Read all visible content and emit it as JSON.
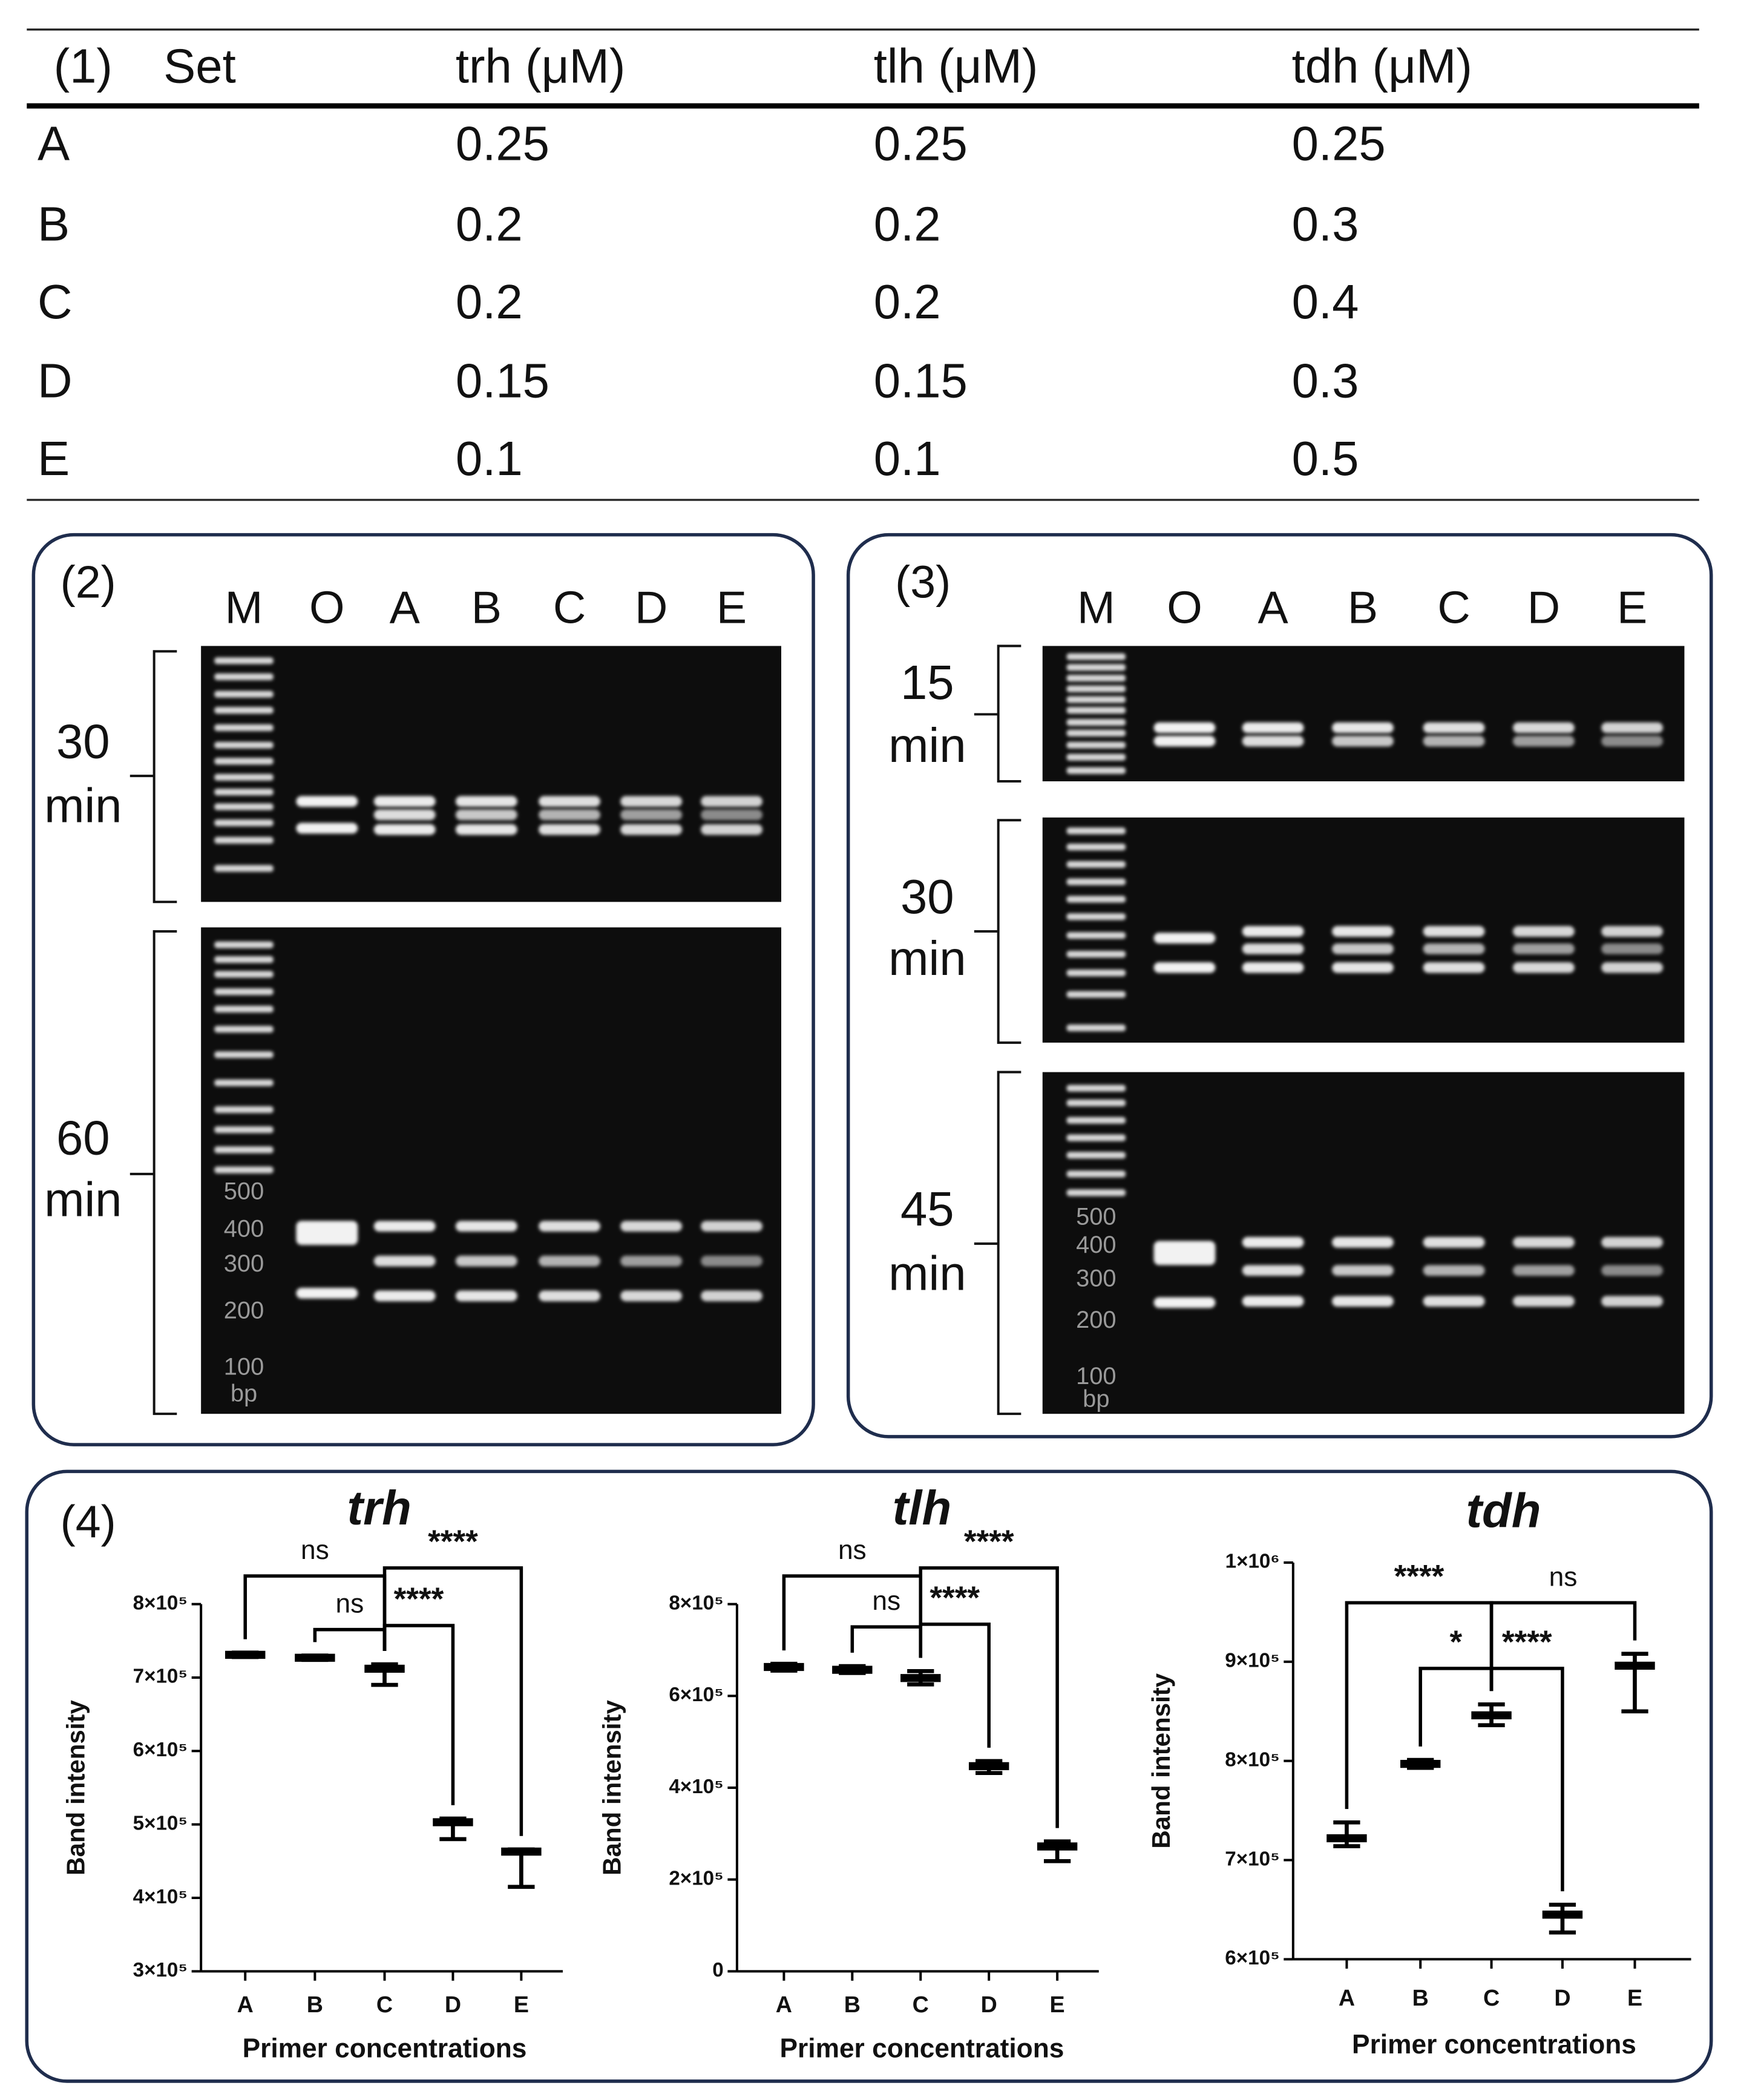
{
  "table": {
    "label": "(1)",
    "header": [
      "Set",
      "trh (μM)",
      "tlh (μM)",
      "tdh (μM)"
    ],
    "rows": [
      [
        "A",
        "0.25",
        "0.25",
        "0.25"
      ],
      [
        "B",
        "0.2",
        "0.2",
        "0.3"
      ],
      [
        "C",
        "0.2",
        "0.2",
        "0.4"
      ],
      [
        "D",
        "0.15",
        "0.15",
        "0.3"
      ],
      [
        "E",
        "0.1",
        "0.1",
        "0.5"
      ]
    ]
  },
  "gels": [
    {
      "label": "(2)",
      "lanes": [
        "M",
        "O",
        "A",
        "B",
        "C",
        "D",
        "E"
      ],
      "sections": [
        {
          "time": "30",
          "unit": "min"
        },
        {
          "time": "60",
          "unit": "min"
        }
      ],
      "ladder": [
        "500",
        "400",
        "300",
        "200",
        "100",
        "bp"
      ]
    },
    {
      "label": "(3)",
      "lanes": [
        "M",
        "O",
        "A",
        "B",
        "C",
        "D",
        "E"
      ],
      "sections": [
        {
          "time": "15",
          "unit": "min"
        },
        {
          "time": "30",
          "unit": "min"
        },
        {
          "time": "45",
          "unit": "min"
        }
      ],
      "ladder": [
        "500",
        "400",
        "300",
        "200",
        "100",
        "bp"
      ]
    }
  ],
  "panel4_label": "(4)",
  "chart_data": [
    {
      "type": "box",
      "title": "trh",
      "ylabel": "Band intensity",
      "xlabel": "Primer concentrations",
      "categories": [
        "A",
        "B",
        "C",
        "D",
        "E"
      ],
      "values": [
        731000,
        727000,
        712000,
        503000,
        463000
      ],
      "min": [
        728000,
        724000,
        690000,
        480000,
        415000
      ],
      "max": [
        734000,
        730000,
        718000,
        508000,
        466000
      ],
      "color": "#000000",
      "ylim": [
        300000,
        800000
      ],
      "yticks": [
        {
          "value": 300000,
          "label": "3×10⁵"
        },
        {
          "value": 400000,
          "label": "4×10⁵"
        },
        {
          "value": 500000,
          "label": "5×10⁵"
        },
        {
          "value": 600000,
          "label": "6×10⁵"
        },
        {
          "value": 700000,
          "label": "7×10⁵"
        },
        {
          "value": 800000,
          "label": "8×10⁵"
        }
      ],
      "annotations": [
        {
          "label": "ns",
          "between": [
            "A",
            "C"
          ]
        },
        {
          "label": "****",
          "between": [
            "C",
            "E"
          ]
        },
        {
          "label": "ns",
          "between": [
            "B",
            "C"
          ]
        },
        {
          "label": "****",
          "between": [
            "C",
            "D"
          ]
        }
      ]
    },
    {
      "type": "box",
      "title": "tlh",
      "ylabel": "Band intensity",
      "xlabel": "Primer concentrations",
      "categories": [
        "A",
        "B",
        "C",
        "D",
        "E"
      ],
      "values": [
        663000,
        657000,
        639000,
        447000,
        272000
      ],
      "min": [
        655000,
        650000,
        625000,
        432000,
        240000
      ],
      "max": [
        670000,
        665000,
        654000,
        458000,
        283000
      ],
      "color": "#000000",
      "ylim": [
        0,
        800000
      ],
      "yticks": [
        0,
        {
          "value": 200000,
          "label": "2×10⁵"
        },
        {
          "value": 400000,
          "label": "4×10⁵"
        },
        {
          "value": 600000,
          "label": "6×10⁵"
        },
        {
          "value": 800000,
          "label": "8×10⁵"
        }
      ],
      "annotations": [
        {
          "label": "ns",
          "between": [
            "A",
            "C"
          ]
        },
        {
          "label": "****",
          "between": [
            "C",
            "E"
          ]
        },
        {
          "label": "ns",
          "between": [
            "B",
            "C"
          ]
        },
        {
          "label": "****",
          "between": [
            "C",
            "D"
          ]
        }
      ]
    },
    {
      "type": "box",
      "title": "tdh",
      "ylabel": "Band intensity",
      "xlabel": "Primer concentrations",
      "categories": [
        "A",
        "B",
        "C",
        "D",
        "E"
      ],
      "values": [
        722000,
        797000,
        846000,
        645000,
        896000
      ],
      "min": [
        714000,
        793000,
        836000,
        627000,
        850000
      ],
      "max": [
        738000,
        801000,
        857000,
        655000,
        908000
      ],
      "color": "#000000",
      "ylim": [
        600000,
        1000000
      ],
      "yticks": [
        {
          "value": 600000,
          "label": "6×10⁵"
        },
        {
          "value": 700000,
          "label": "7×10⁵"
        },
        {
          "value": 800000,
          "label": "8×10⁵"
        },
        {
          "value": 900000,
          "label": "9×10⁵"
        },
        {
          "value": 1000000,
          "label": "1×10⁶"
        }
      ],
      "annotations": [
        {
          "label": "****",
          "between": [
            "A",
            "C"
          ]
        },
        {
          "label": "ns",
          "between": [
            "C",
            "E"
          ]
        },
        {
          "label": "*",
          "between": [
            "B",
            "C"
          ]
        },
        {
          "label": "****",
          "between": [
            "C",
            "D"
          ]
        }
      ]
    }
  ]
}
